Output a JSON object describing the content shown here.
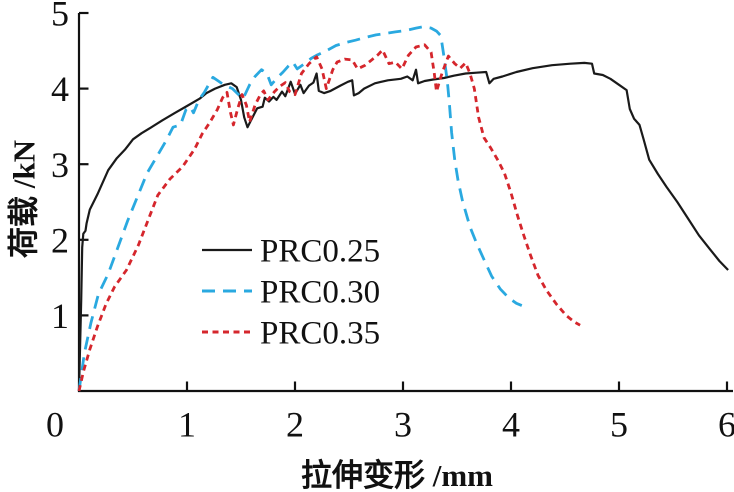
{
  "figure": {
    "background": "#ffffff",
    "text_color": "#111111",
    "origin_label": "0"
  },
  "chart_data": {
    "type": "line",
    "title": "",
    "xlabel": "拉伸变形 /mm",
    "ylabel": "荷载 /kN",
    "xlim": [
      0,
      6
    ],
    "ylim": [
      0,
      5
    ],
    "x_ticks": [
      1,
      2,
      3,
      4,
      5,
      6
    ],
    "y_ticks": [
      1,
      2,
      3,
      4,
      5
    ],
    "grid": false,
    "legend_position": "center-left",
    "series": [
      {
        "name": "PRC0.25",
        "color": "#1a1a1a",
        "line_style": "solid",
        "points": [
          [
            0,
            0
          ],
          [
            0.02,
            1.2
          ],
          [
            0.03,
            1.9
          ],
          [
            0.04,
            2.08
          ],
          [
            0.06,
            2.12
          ],
          [
            0.07,
            2.22
          ],
          [
            0.1,
            2.4
          ],
          [
            0.17,
            2.6
          ],
          [
            0.27,
            2.92
          ],
          [
            0.35,
            3.08
          ],
          [
            0.43,
            3.2
          ],
          [
            0.5,
            3.33
          ],
          [
            0.58,
            3.41
          ],
          [
            0.66,
            3.48
          ],
          [
            0.77,
            3.58
          ],
          [
            0.89,
            3.68
          ],
          [
            1.0,
            3.77
          ],
          [
            1.12,
            3.87
          ],
          [
            1.18,
            3.94
          ],
          [
            1.26,
            4.0
          ],
          [
            1.35,
            4.05
          ],
          [
            1.41,
            4.07
          ],
          [
            1.46,
            4.02
          ],
          [
            1.5,
            3.85
          ],
          [
            1.53,
            3.62
          ],
          [
            1.56,
            3.49
          ],
          [
            1.61,
            3.63
          ],
          [
            1.65,
            3.74
          ],
          [
            1.7,
            3.76
          ],
          [
            1.72,
            3.88
          ],
          [
            1.76,
            3.83
          ],
          [
            1.8,
            3.89
          ],
          [
            1.83,
            3.85
          ],
          [
            1.88,
            3.96
          ],
          [
            1.91,
            3.9
          ],
          [
            1.96,
            4.09
          ],
          [
            2.0,
            3.93
          ],
          [
            2.05,
            4.05
          ],
          [
            2.08,
            3.94
          ],
          [
            2.13,
            4.04
          ],
          [
            2.17,
            4.08
          ],
          [
            2.2,
            4.2
          ],
          [
            2.22,
            3.97
          ],
          [
            2.27,
            3.94
          ],
          [
            2.33,
            3.97
          ],
          [
            2.42,
            4.04
          ],
          [
            2.49,
            4.09
          ],
          [
            2.53,
            4.11
          ],
          [
            2.545,
            3.91
          ],
          [
            2.59,
            3.94
          ],
          [
            2.64,
            4.0
          ],
          [
            2.74,
            4.07
          ],
          [
            2.86,
            4.11
          ],
          [
            2.98,
            4.13
          ],
          [
            3.04,
            4.16
          ],
          [
            3.09,
            4.11
          ],
          [
            3.12,
            4.25
          ],
          [
            3.14,
            4.07
          ],
          [
            3.2,
            4.1
          ],
          [
            3.28,
            4.12
          ],
          [
            3.38,
            4.14
          ],
          [
            3.47,
            4.17
          ],
          [
            3.58,
            4.2
          ],
          [
            3.68,
            4.21
          ],
          [
            3.77,
            4.22
          ],
          [
            3.8,
            4.07
          ],
          [
            3.84,
            4.13
          ],
          [
            3.92,
            4.16
          ],
          [
            4.05,
            4.22
          ],
          [
            4.2,
            4.27
          ],
          [
            4.38,
            4.31
          ],
          [
            4.55,
            4.33
          ],
          [
            4.68,
            4.34
          ],
          [
            4.75,
            4.33
          ],
          [
            4.77,
            4.2
          ],
          [
            4.85,
            4.18
          ],
          [
            4.92,
            4.13
          ],
          [
            5.0,
            4.05
          ],
          [
            5.07,
            3.98
          ],
          [
            5.1,
            3.73
          ],
          [
            5.14,
            3.6
          ],
          [
            5.19,
            3.52
          ],
          [
            5.23,
            3.32
          ],
          [
            5.28,
            3.06
          ],
          [
            5.36,
            2.87
          ],
          [
            5.44,
            2.7
          ],
          [
            5.54,
            2.5
          ],
          [
            5.64,
            2.28
          ],
          [
            5.74,
            2.06
          ],
          [
            5.84,
            1.88
          ],
          [
            5.93,
            1.72
          ],
          [
            6.01,
            1.6
          ]
        ]
      },
      {
        "name": "PRC0.30",
        "color": "#2aa9e0",
        "line_style": "long-dash",
        "points": [
          [
            0,
            0
          ],
          [
            0.05,
            0.5
          ],
          [
            0.11,
            0.9
          ],
          [
            0.18,
            1.28
          ],
          [
            0.27,
            1.55
          ],
          [
            0.36,
            1.9
          ],
          [
            0.45,
            2.25
          ],
          [
            0.55,
            2.6
          ],
          [
            0.63,
            2.88
          ],
          [
            0.72,
            3.1
          ],
          [
            0.81,
            3.32
          ],
          [
            0.87,
            3.49
          ],
          [
            0.94,
            3.52
          ],
          [
            0.99,
            3.72
          ],
          [
            1.03,
            3.76
          ],
          [
            1.06,
            3.68
          ],
          [
            1.11,
            3.85
          ],
          [
            1.16,
            3.95
          ],
          [
            1.2,
            4.05
          ],
          [
            1.24,
            4.15
          ],
          [
            1.29,
            4.1
          ],
          [
            1.34,
            4.05
          ],
          [
            1.42,
            4.0
          ],
          [
            1.47,
            3.93
          ],
          [
            1.52,
            3.87
          ],
          [
            1.58,
            4.05
          ],
          [
            1.63,
            4.16
          ],
          [
            1.69,
            4.25
          ],
          [
            1.74,
            4.2
          ],
          [
            1.78,
            4.05
          ],
          [
            1.84,
            4.15
          ],
          [
            1.89,
            4.22
          ],
          [
            1.94,
            4.3
          ],
          [
            1.98,
            4.35
          ],
          [
            2.02,
            4.26
          ],
          [
            2.08,
            4.32
          ],
          [
            2.15,
            4.4
          ],
          [
            2.2,
            4.44
          ],
          [
            2.29,
            4.5
          ],
          [
            2.38,
            4.57
          ],
          [
            2.47,
            4.61
          ],
          [
            2.56,
            4.64
          ],
          [
            2.66,
            4.68
          ],
          [
            2.75,
            4.71
          ],
          [
            2.84,
            4.73
          ],
          [
            2.93,
            4.75
          ],
          [
            3.03,
            4.77
          ],
          [
            3.12,
            4.8
          ],
          [
            3.19,
            4.82
          ],
          [
            3.26,
            4.8
          ],
          [
            3.31,
            4.76
          ],
          [
            3.35,
            4.7
          ],
          [
            3.38,
            4.42
          ],
          [
            3.41,
            4.1
          ],
          [
            3.43,
            3.8
          ],
          [
            3.45,
            3.42
          ],
          [
            3.48,
            3.05
          ],
          [
            3.51,
            2.78
          ],
          [
            3.55,
            2.52
          ],
          [
            3.62,
            2.17
          ],
          [
            3.68,
            1.96
          ],
          [
            3.74,
            1.77
          ],
          [
            3.82,
            1.52
          ],
          [
            3.9,
            1.35
          ],
          [
            3.98,
            1.23
          ],
          [
            4.05,
            1.16
          ],
          [
            4.1,
            1.13
          ]
        ]
      },
      {
        "name": "PRC0.35",
        "color": "#d5262c",
        "line_style": "short-dash",
        "points": [
          [
            0,
            0
          ],
          [
            0.04,
            0.25
          ],
          [
            0.1,
            0.55
          ],
          [
            0.17,
            0.85
          ],
          [
            0.25,
            1.15
          ],
          [
            0.33,
            1.38
          ],
          [
            0.44,
            1.6
          ],
          [
            0.55,
            1.93
          ],
          [
            0.64,
            2.26
          ],
          [
            0.73,
            2.59
          ],
          [
            0.84,
            2.8
          ],
          [
            0.96,
            2.97
          ],
          [
            1.07,
            3.2
          ],
          [
            1.14,
            3.4
          ],
          [
            1.21,
            3.55
          ],
          [
            1.28,
            3.72
          ],
          [
            1.33,
            3.88
          ],
          [
            1.37,
            3.95
          ],
          [
            1.4,
            3.7
          ],
          [
            1.43,
            3.52
          ],
          [
            1.47,
            3.74
          ],
          [
            1.51,
            3.92
          ],
          [
            1.55,
            3.78
          ],
          [
            1.58,
            3.56
          ],
          [
            1.63,
            3.78
          ],
          [
            1.68,
            3.92
          ],
          [
            1.71,
            3.97
          ],
          [
            1.75,
            3.85
          ],
          [
            1.81,
            3.96
          ],
          [
            1.86,
            4.03
          ],
          [
            1.91,
            4.08
          ],
          [
            1.95,
            3.96
          ],
          [
            2.0,
            3.92
          ],
          [
            2.06,
            4.2
          ],
          [
            2.13,
            4.33
          ],
          [
            2.2,
            4.42
          ],
          [
            2.25,
            4.26
          ],
          [
            2.29,
            4.0
          ],
          [
            2.35,
            4.25
          ],
          [
            2.39,
            4.35
          ],
          [
            2.46,
            4.39
          ],
          [
            2.53,
            4.38
          ],
          [
            2.58,
            4.26
          ],
          [
            2.65,
            4.31
          ],
          [
            2.71,
            4.38
          ],
          [
            2.77,
            4.45
          ],
          [
            2.81,
            4.51
          ],
          [
            2.87,
            4.33
          ],
          [
            2.93,
            4.35
          ],
          [
            2.99,
            4.26
          ],
          [
            3.05,
            4.44
          ],
          [
            3.12,
            4.55
          ],
          [
            3.2,
            4.58
          ],
          [
            3.26,
            4.48
          ],
          [
            3.29,
            4.2
          ],
          [
            3.31,
            3.96
          ],
          [
            3.36,
            4.2
          ],
          [
            3.42,
            4.43
          ],
          [
            3.48,
            4.33
          ],
          [
            3.53,
            4.27
          ],
          [
            3.58,
            4.34
          ],
          [
            3.62,
            4.2
          ],
          [
            3.66,
            4.0
          ],
          [
            3.7,
            3.62
          ],
          [
            3.75,
            3.35
          ],
          [
            3.81,
            3.22
          ],
          [
            3.88,
            3.05
          ],
          [
            3.94,
            2.88
          ],
          [
            4.0,
            2.62
          ],
          [
            4.06,
            2.32
          ],
          [
            4.12,
            2.05
          ],
          [
            4.18,
            1.8
          ],
          [
            4.25,
            1.53
          ],
          [
            4.33,
            1.33
          ],
          [
            4.42,
            1.15
          ],
          [
            4.51,
            1.0
          ],
          [
            4.59,
            0.91
          ],
          [
            4.64,
            0.87
          ]
        ]
      }
    ]
  }
}
